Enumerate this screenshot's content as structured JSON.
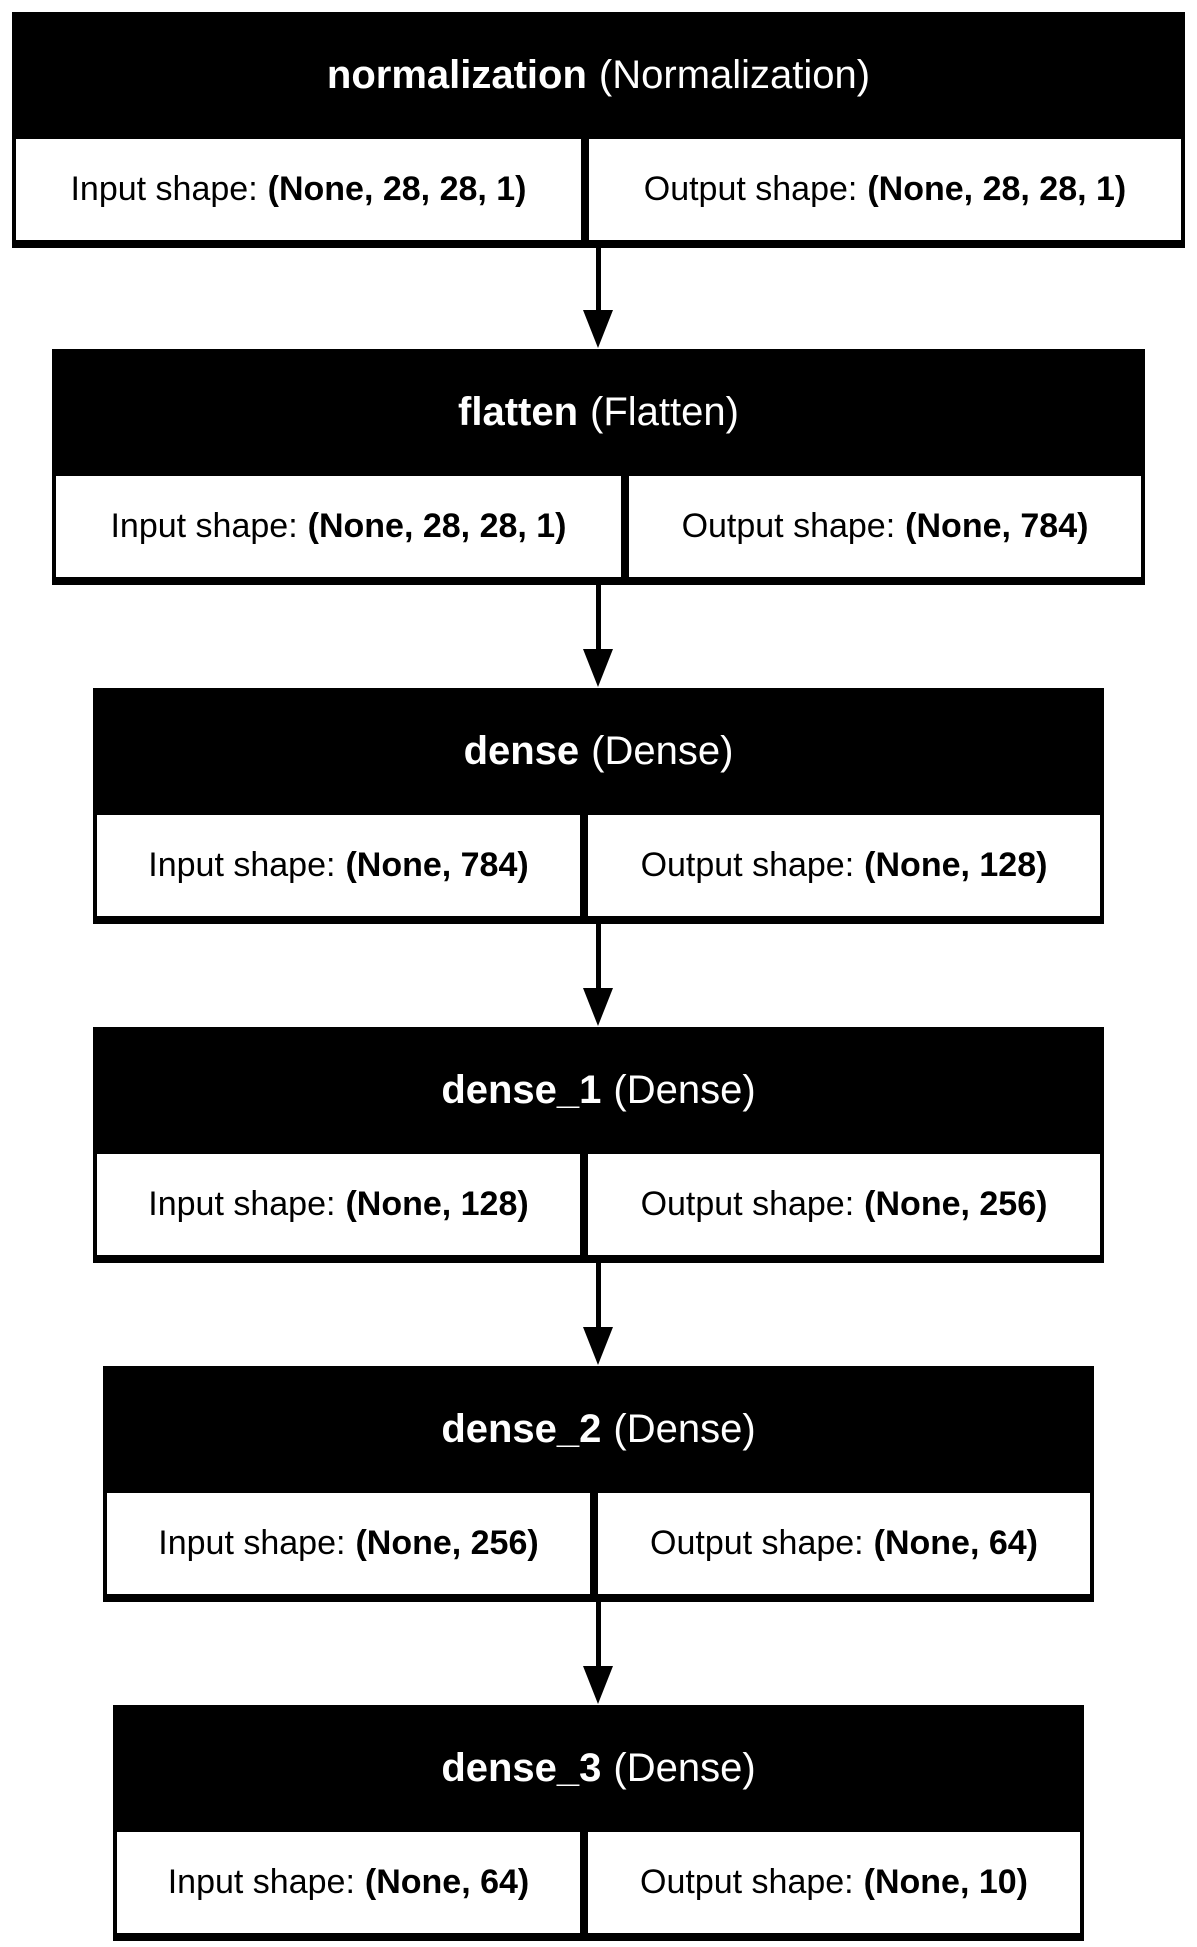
{
  "layers": [
    {
      "name": "normalization",
      "class": "(Normalization)",
      "input_label": "Input shape:",
      "input_shape": "(None, 28, 28, 1)",
      "output_label": "Output shape:",
      "output_shape": "(None, 28, 28, 1)"
    },
    {
      "name": "flatten",
      "class": "(Flatten)",
      "input_label": "Input shape:",
      "input_shape": "(None, 28, 28, 1)",
      "output_label": "Output shape:",
      "output_shape": "(None, 784)"
    },
    {
      "name": "dense",
      "class": "(Dense)",
      "input_label": "Input shape:",
      "input_shape": "(None, 784)",
      "output_label": "Output shape:",
      "output_shape": "(None, 128)"
    },
    {
      "name": "dense_1",
      "class": "(Dense)",
      "input_label": "Input shape:",
      "input_shape": "(None, 128)",
      "output_label": "Output shape:",
      "output_shape": "(None, 256)"
    },
    {
      "name": "dense_2",
      "class": "(Dense)",
      "input_label": "Input shape:",
      "input_shape": "(None, 256)",
      "output_label": "Output shape:",
      "output_shape": "(None, 64)"
    },
    {
      "name": "dense_3",
      "class": "(Dense)",
      "input_label": "Input shape:",
      "input_shape": "(None, 64)",
      "output_label": "Output shape:",
      "output_shape": "(None, 10)"
    }
  ],
  "colors": {
    "header_background": "#000000",
    "header_text": "#ffffff",
    "cell_background": "#ffffff",
    "cell_text": "#000000",
    "arrow": "#000000"
  }
}
